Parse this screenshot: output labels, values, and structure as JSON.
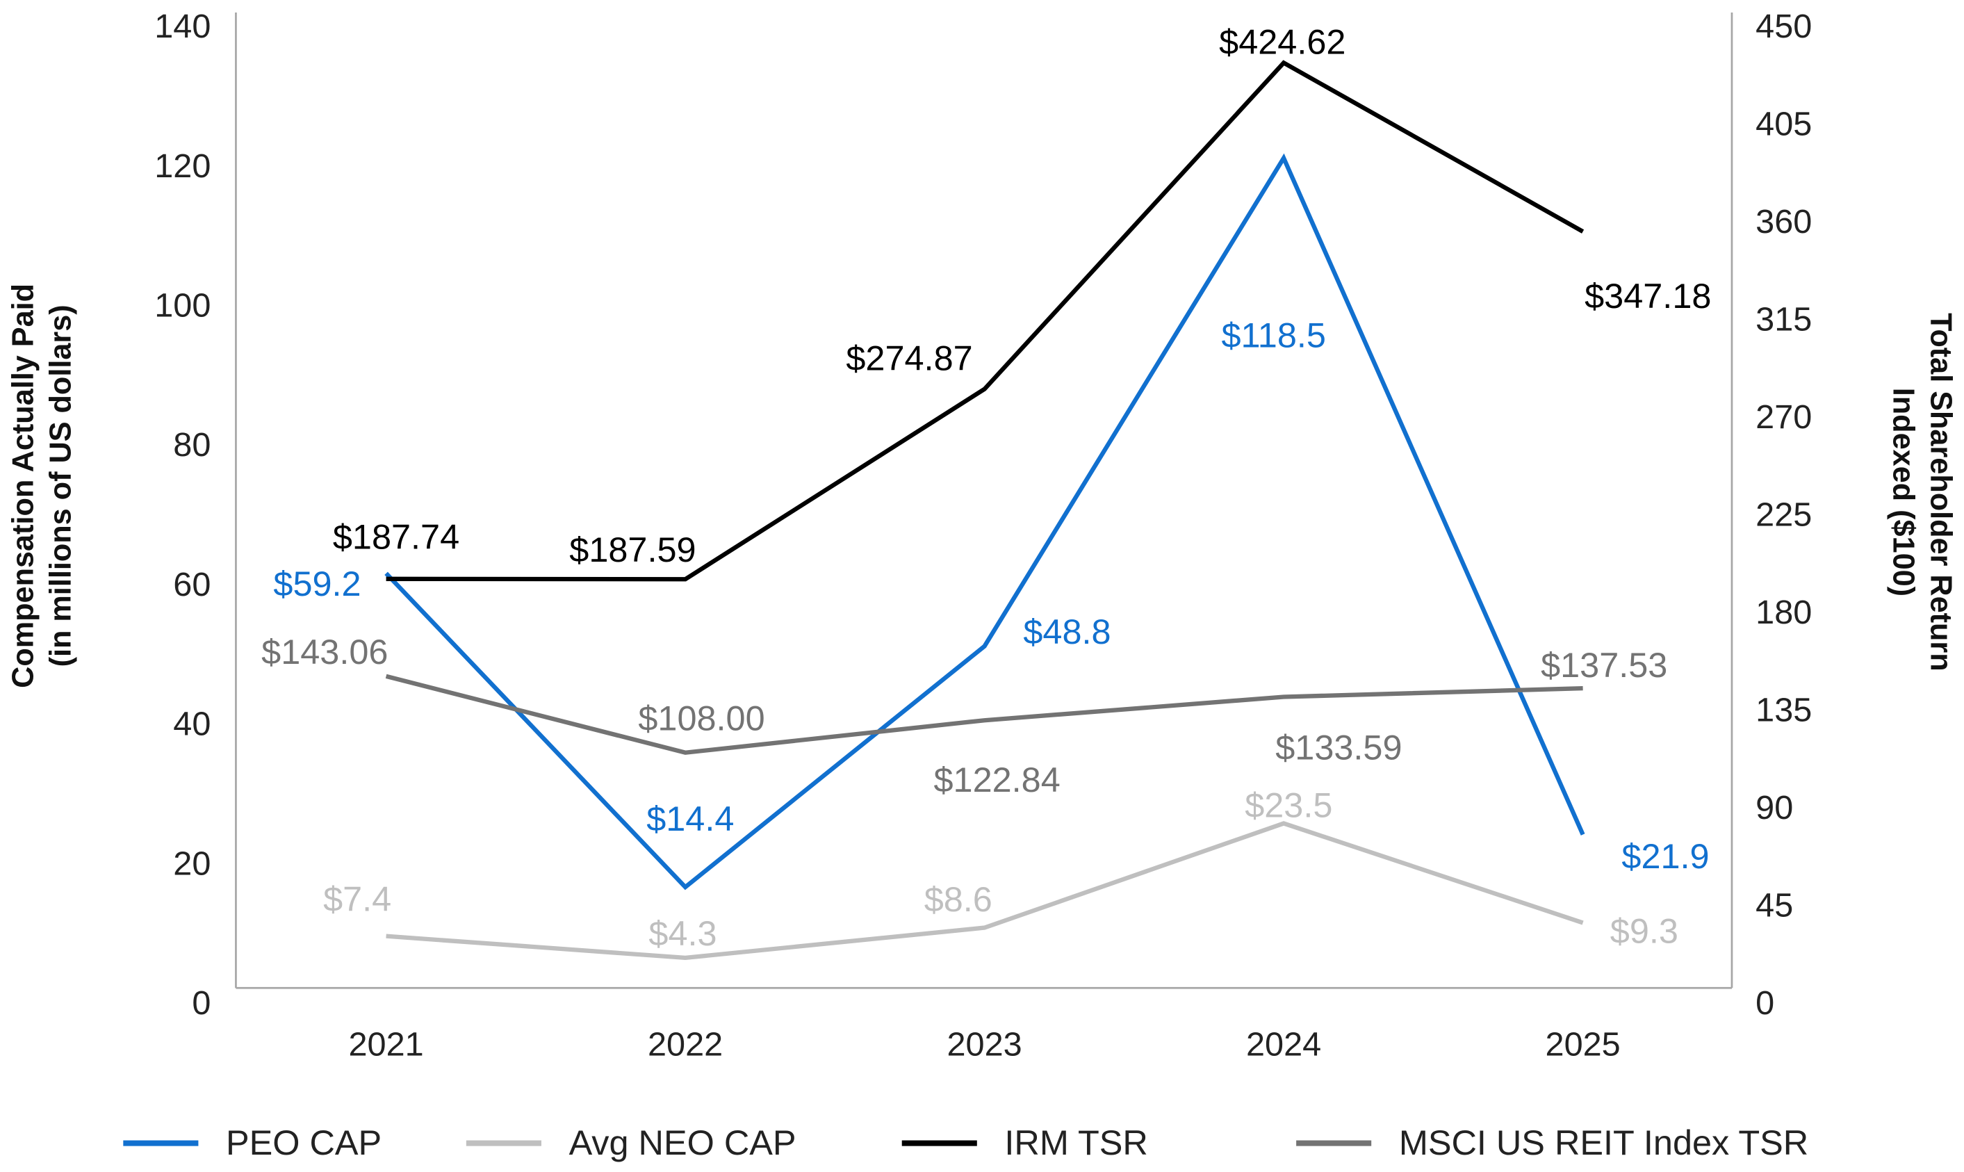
{
  "chart_data": {
    "type": "line",
    "categories": [
      "2021",
      "2022",
      "2023",
      "2024",
      "2025"
    ],
    "y_left": {
      "title_line1": "Compensation Actually Paid",
      "title_line2": "(in millions of US dollars)",
      "range": [
        0,
        140
      ],
      "ticks": [
        "0",
        "20",
        "40",
        "60",
        "80",
        "100",
        "120",
        "140"
      ]
    },
    "y_right": {
      "title_line1": "Total Shareholder Return",
      "title_line2": "Indexed ($100)",
      "range": [
        0,
        450
      ],
      "ticks": [
        "0",
        "45",
        "90",
        "135",
        "180",
        "225",
        "270",
        "315",
        "360",
        "405",
        "450"
      ]
    },
    "grid": false,
    "legend_position": "bottom",
    "series": [
      {
        "name": "PEO CAP",
        "axis": "left",
        "color": "#1170CF",
        "values": [
          59.2,
          14.4,
          48.8,
          118.5,
          21.9
        ],
        "labels": [
          "$59.2",
          "$14.4",
          "$48.8",
          "$118.5",
          "$21.9"
        ]
      },
      {
        "name": "Avg NEO CAP",
        "axis": "left",
        "color": "#BFBFBF",
        "values": [
          7.4,
          4.3,
          8.6,
          23.5,
          9.3
        ],
        "labels": [
          "$7.4",
          "$4.3",
          "$8.6",
          "$23.5",
          "$9.3"
        ]
      },
      {
        "name": "IRM TSR",
        "axis": "right",
        "color": "#000000",
        "values": [
          187.74,
          187.59,
          274.87,
          424.62,
          347.18
        ],
        "labels": [
          "$187.74",
          "$187.59",
          "$274.87",
          "$424.62",
          "$347.18"
        ]
      },
      {
        "name": "MSCI US REIT Index TSR",
        "axis": "right",
        "color": "#737373",
        "values": [
          143.06,
          108.0,
          122.84,
          133.59,
          137.53
        ],
        "labels": [
          "$143.06",
          "$108.00",
          "$122.84",
          "$133.59",
          "$137.53"
        ]
      }
    ]
  }
}
